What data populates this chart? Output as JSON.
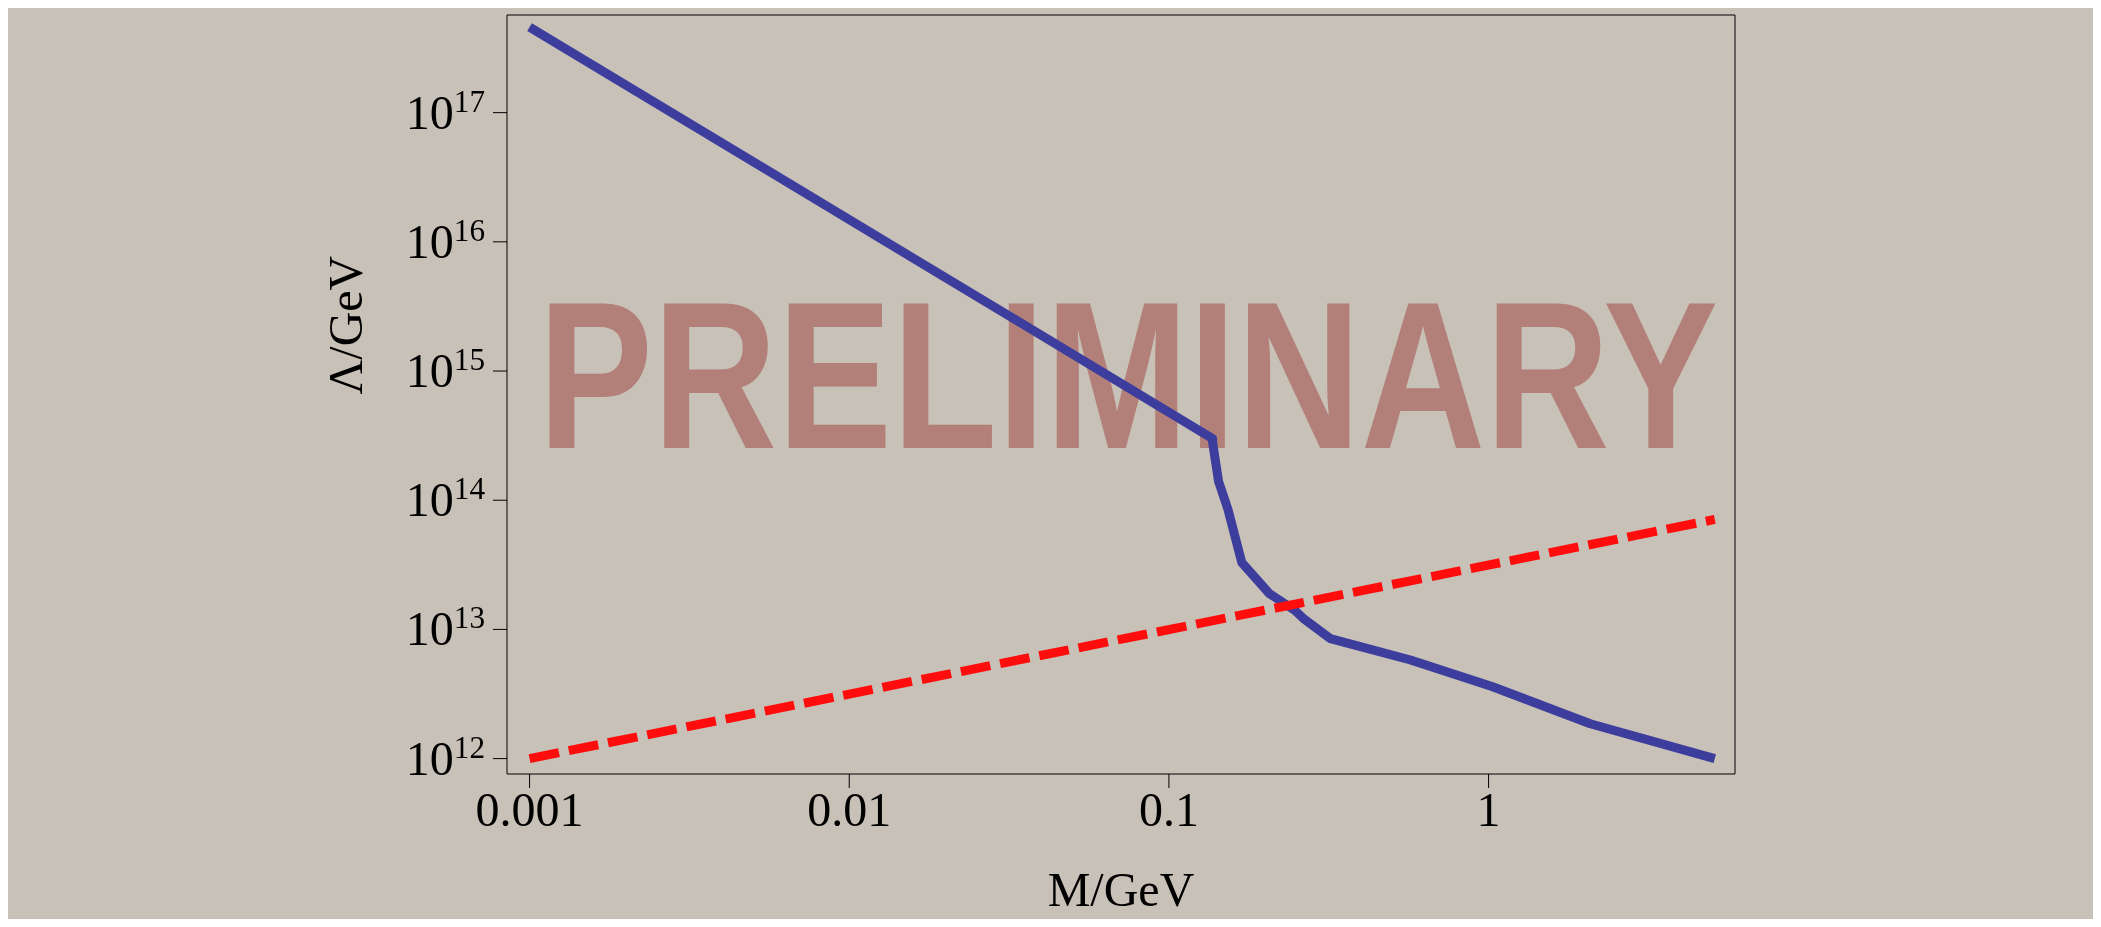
{
  "chart_data": {
    "type": "line",
    "xlabel": "M/GeV",
    "ylabel": "Λ/GeV",
    "log": "xy",
    "annotations": [
      "PRELIMINARY"
    ],
    "xlim": [
      0.00085,
      5.9
    ],
    "xticks": [
      0.001,
      0.01,
      0.1,
      1
    ],
    "ylim": [
      760000000000.0,
      5.7e+17
    ],
    "yticks": [
      {
        "value": 1000000000000.0,
        "label": "10$^{12}$"
      },
      {
        "value": 10000000000000.0,
        "label": "10$^{13}$"
      },
      {
        "value": 100000000000000.0,
        "label": "10$^{14}$"
      },
      {
        "value": 1000000000000000.0,
        "label": "10$^{15}$"
      },
      {
        "value": 1e+16,
        "label": "10$^{16}$"
      },
      {
        "value": 1e+17,
        "label": "10$^{17}$"
      }
    ],
    "series": [
      {
        "color": "#3d3d9e",
        "line_style": "solid",
        "x": [
          0.001,
          0.137,
          0.137,
          0.143,
          0.153,
          0.169,
          0.206,
          0.248,
          0.265,
          0.32,
          0.57,
          1.03,
          2.08,
          5.1
        ],
        "values": [
          4.6e+17,
          300000000000000.0,
          280000000000000.0,
          140000000000000.0,
          85000000000000.0,
          33000000000000.0,
          19000000000000.0,
          14000000000000.0,
          12000000000000.0,
          8500000000000.0,
          5800000000000.0,
          3600000000000.0,
          1860000000000.0,
          1000000000000.0
        ]
      },
      {
        "color": "#ff0d0d",
        "line_style": "dashed",
        "x": [
          0.001,
          5.1
        ],
        "values": [
          1000000000000.0,
          71000000000000.0
        ]
      }
    ]
  }
}
